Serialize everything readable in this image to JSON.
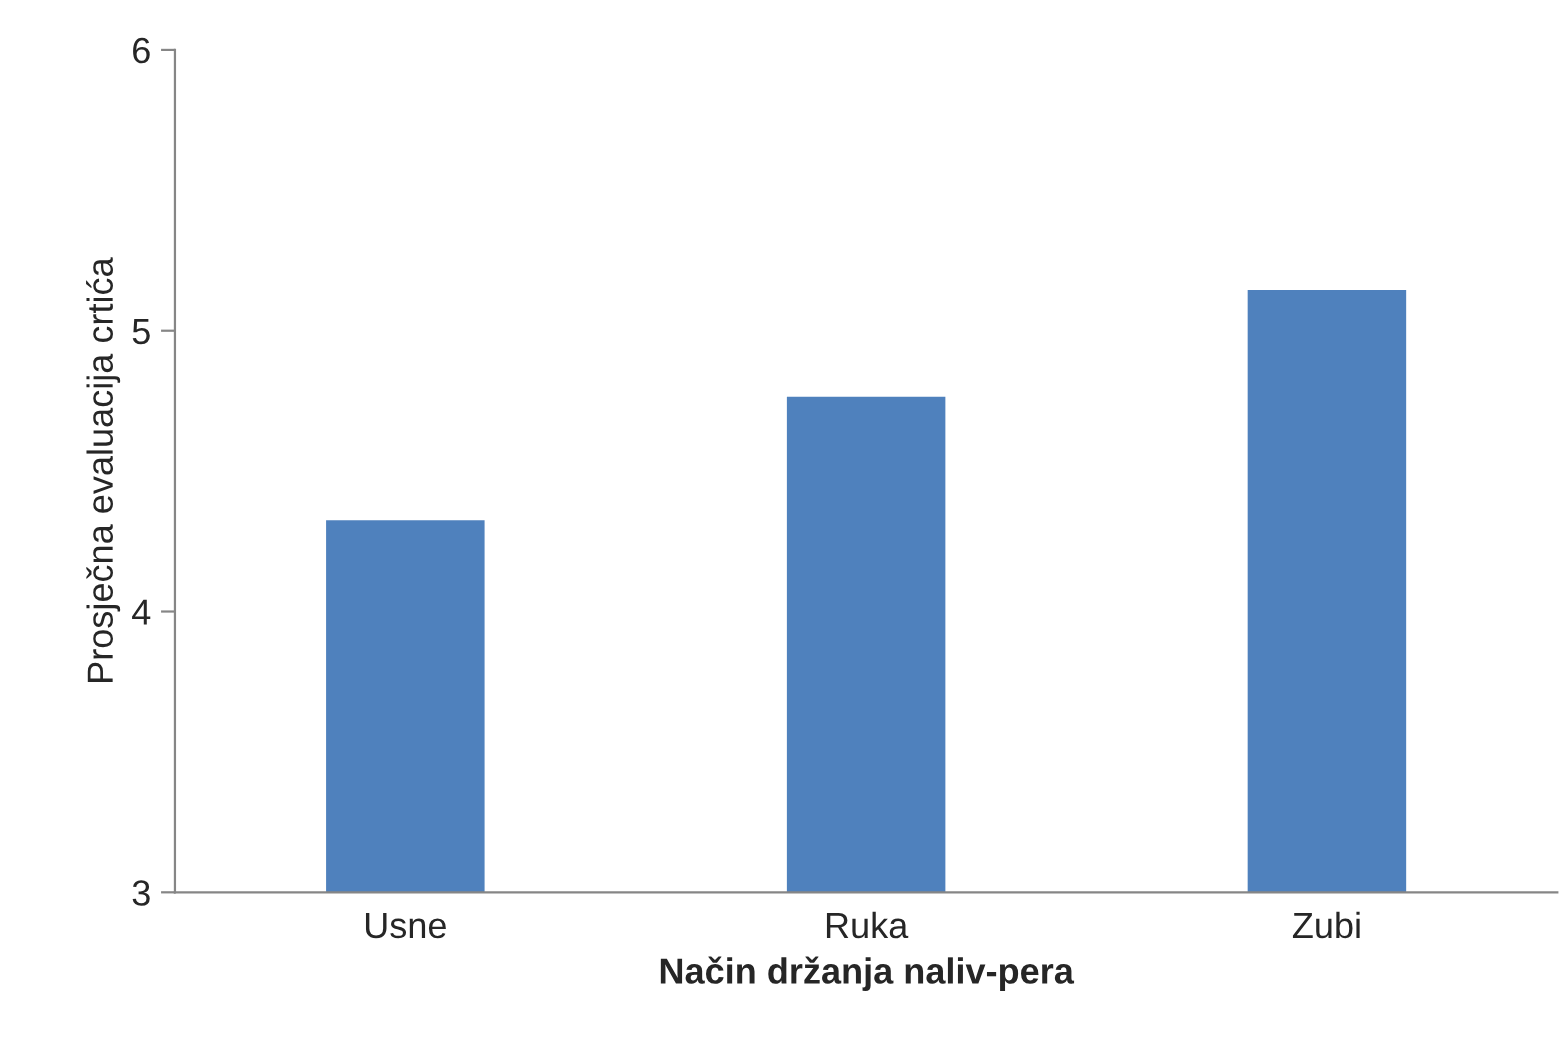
{
  "chart_data": {
    "type": "bar",
    "xlabel": "Način držanja naliv-pera",
    "ylabel": "Prosječna evaluacija crtića",
    "categories": [
      "Usne",
      "Ruka",
      "Zubi"
    ],
    "values": [
      4.33,
      4.77,
      5.15
    ],
    "color": "#4f81bd",
    "ylim": [
      3,
      6
    ],
    "yticks": [
      3,
      4,
      5,
      6
    ],
    "grid": false,
    "legend": false
  }
}
